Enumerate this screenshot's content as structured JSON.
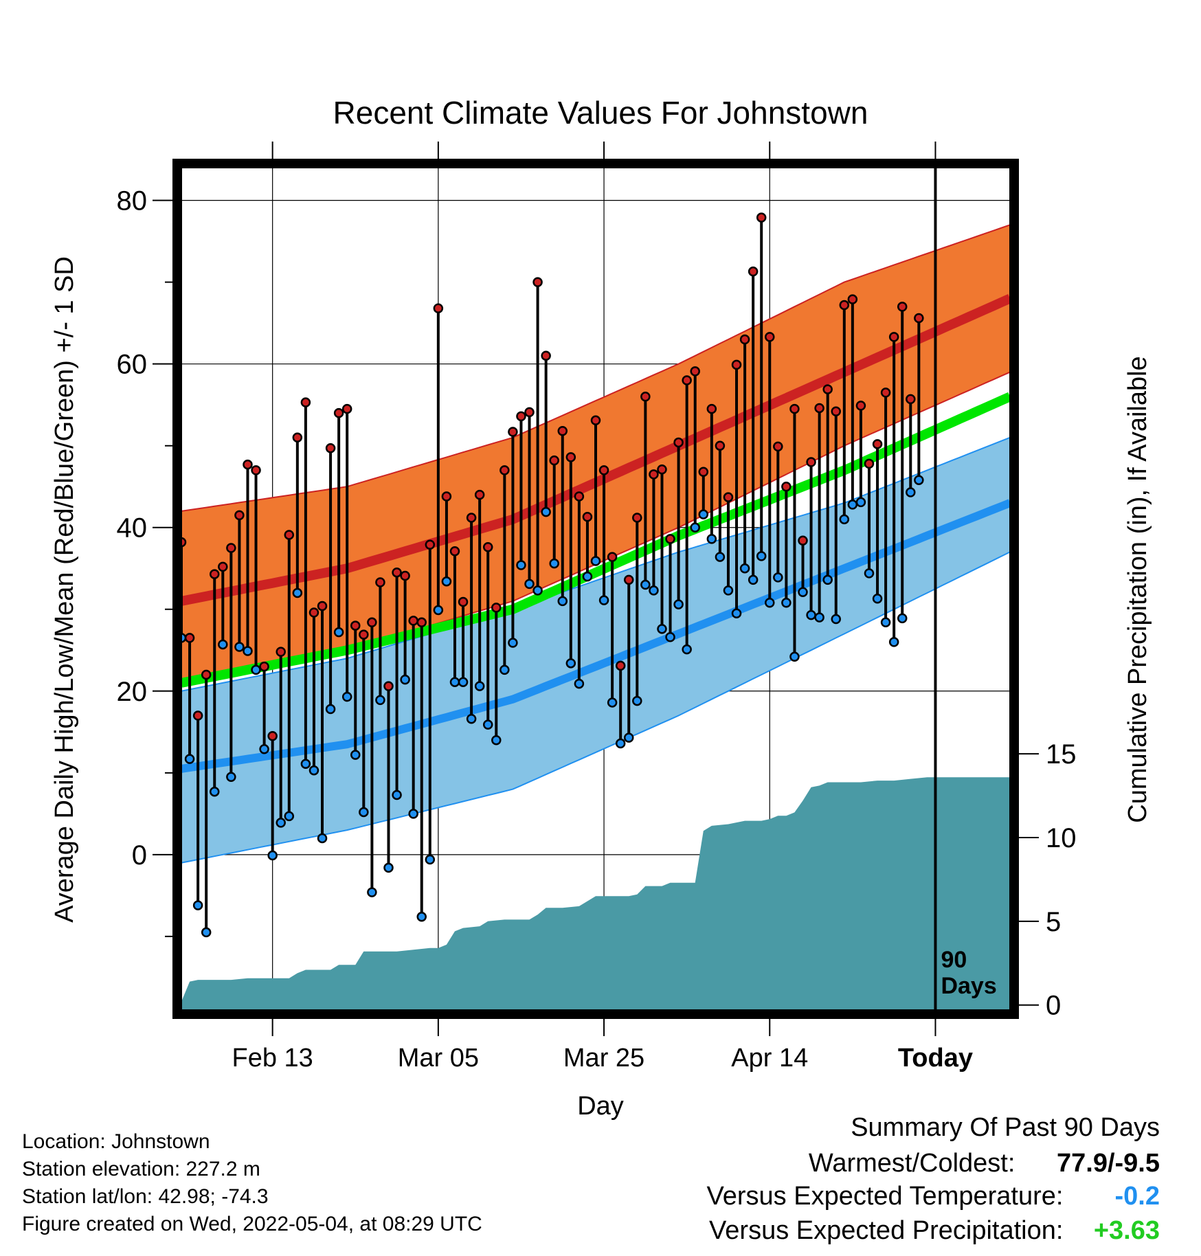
{
  "chart_data": {
    "type": "line",
    "title": "Recent Climate Values For Johnstown",
    "xlabel": "Day",
    "ylabel_left": "Average Daily High/Low/Mean (Red/Blue/Green) +/- 1 SD",
    "ylabel_right": "Cumulative Precipitation (in), If Available",
    "x_tick_labels": [
      "Feb 13",
      "Mar 05",
      "Mar 25",
      "Apr 14",
      "Today"
    ],
    "x_tick_days": [
      11,
      31,
      51,
      71,
      91
    ],
    "x_range_days": [
      0,
      100
    ],
    "ylim_left": [
      -19,
      84
    ],
    "yticks_left": [
      0,
      20,
      40,
      60,
      80
    ],
    "ylim_right": [
      -0.3,
      50
    ],
    "yticks_right": [
      0,
      5,
      10,
      15
    ],
    "today_marker_label": [
      "90",
      "Days"
    ],
    "colors": {
      "high_band": "#f07830",
      "high_line": "#cc2222",
      "low_band": "#85c3e6",
      "low_line": "#2090f0",
      "mean_line": "#00e600",
      "precip_fill": "#4a9aa5",
      "high_dot": "#cc2222",
      "low_dot": "#2090f0"
    },
    "normal_high": [
      [
        0,
        31
      ],
      [
        20,
        35
      ],
      [
        40,
        41
      ],
      [
        60,
        50
      ],
      [
        80,
        59
      ],
      [
        100,
        68
      ]
    ],
    "normal_high_upper": [
      [
        0,
        42
      ],
      [
        20,
        45
      ],
      [
        40,
        51
      ],
      [
        60,
        60
      ],
      [
        80,
        70
      ],
      [
        100,
        77
      ]
    ],
    "normal_high_lower": [
      [
        0,
        21
      ],
      [
        20,
        25
      ],
      [
        40,
        31
      ],
      [
        60,
        40
      ],
      [
        80,
        50
      ],
      [
        100,
        59
      ]
    ],
    "normal_low": [
      [
        0,
        10.5
      ],
      [
        20,
        13.5
      ],
      [
        40,
        19
      ],
      [
        60,
        27
      ],
      [
        80,
        35
      ],
      [
        100,
        43
      ]
    ],
    "normal_low_upper": [
      [
        0,
        20
      ],
      [
        20,
        24
      ],
      [
        40,
        30
      ],
      [
        60,
        37
      ],
      [
        80,
        43
      ],
      [
        100,
        51
      ]
    ],
    "normal_low_lower": [
      [
        0,
        -1
      ],
      [
        20,
        3
      ],
      [
        40,
        8
      ],
      [
        60,
        17
      ],
      [
        80,
        27
      ],
      [
        100,
        37
      ]
    ],
    "normal_mean": [
      [
        0,
        21
      ],
      [
        20,
        25
      ],
      [
        40,
        30
      ],
      [
        60,
        39
      ],
      [
        80,
        47
      ],
      [
        100,
        56
      ]
    ],
    "daily_high": [
      38.2,
      26.5,
      17,
      22,
      34.3,
      35.2,
      37.5,
      41.5,
      47.7,
      47,
      23,
      14.5,
      24.8,
      39.1,
      51,
      55.3,
      29.6,
      30.4,
      49.7,
      54,
      54.5,
      28,
      26.9,
      28.4,
      33.3,
      20.6,
      34.5,
      34.1,
      28.6,
      28.4,
      37.9,
      66.8,
      43.8,
      37.1,
      30.9,
      41.2,
      44,
      37.6,
      30.2,
      47,
      51.7,
      53.6,
      54.1,
      70,
      61,
      48.2,
      51.8,
      48.6,
      43.8,
      41.3,
      53.1,
      47,
      36.4,
      23.1,
      33.6,
      41.2,
      56,
      46.5,
      47.1,
      38.6,
      50.4,
      58,
      59.1,
      46.8,
      54.5,
      50,
      43.7,
      59.9,
      63,
      71.3,
      77.9,
      63.3,
      49.9,
      45,
      54.5,
      38.4,
      48,
      54.6,
      56.9,
      54.2,
      67.2,
      67.9,
      54.9,
      47.8,
      50.2,
      56.5,
      63.3,
      67,
      55.7,
      65.6
    ],
    "daily_low": [
      26.5,
      11.7,
      -6.2,
      -9.5,
      7.7,
      25.7,
      9.5,
      25.4,
      24.9,
      22.6,
      12.9,
      -0.1,
      3.9,
      4.7,
      32,
      11.1,
      10.3,
      2,
      17.8,
      27.2,
      19.3,
      12.2,
      5.2,
      -4.6,
      18.9,
      -1.6,
      7.3,
      21.4,
      5,
      -7.6,
      -0.6,
      29.9,
      33.4,
      21.1,
      21.1,
      16.6,
      20.6,
      15.9,
      14,
      22.6,
      25.9,
      35.4,
      33.1,
      32.3,
      41.9,
      35.6,
      31,
      23.4,
      20.9,
      34,
      35.9,
      31.1,
      18.6,
      13.6,
      14.3,
      18.8,
      33,
      32.3,
      27.6,
      26.6,
      30.6,
      25.1,
      40,
      41.6,
      38.6,
      36.4,
      32.3,
      29.5,
      35,
      33.6,
      36.5,
      30.8,
      33.9,
      30.8,
      24.2,
      32.1,
      29.3,
      29,
      33.6,
      28.8,
      41,
      42.8,
      43.1,
      34.4,
      31.3,
      28.4,
      26,
      28.9,
      44.3,
      45.8
    ],
    "cumulative_precip": [
      [
        0,
        0.2
      ],
      [
        1,
        1.4
      ],
      [
        2,
        1.5
      ],
      [
        4,
        1.5
      ],
      [
        6,
        1.5
      ],
      [
        8,
        1.6
      ],
      [
        10,
        1.6
      ],
      [
        12,
        1.6
      ],
      [
        13,
        1.6
      ],
      [
        14,
        1.9
      ],
      [
        15,
        2.1
      ],
      [
        17,
        2.1
      ],
      [
        18,
        2.1
      ],
      [
        19,
        2.4
      ],
      [
        21,
        2.4
      ],
      [
        22,
        3.2
      ],
      [
        24,
        3.2
      ],
      [
        26,
        3.2
      ],
      [
        28,
        3.3
      ],
      [
        30,
        3.4
      ],
      [
        31,
        3.4
      ],
      [
        32,
        3.6
      ],
      [
        33,
        4.4
      ],
      [
        34,
        4.6
      ],
      [
        36,
        4.7
      ],
      [
        37,
        5.0
      ],
      [
        39,
        5.1
      ],
      [
        40,
        5.1
      ],
      [
        42,
        5.1
      ],
      [
        43,
        5.4
      ],
      [
        44,
        5.8
      ],
      [
        46,
        5.8
      ],
      [
        48,
        5.9
      ],
      [
        49,
        6.2
      ],
      [
        50,
        6.5
      ],
      [
        52,
        6.5
      ],
      [
        54,
        6.5
      ],
      [
        55,
        6.6
      ],
      [
        56,
        7.1
      ],
      [
        58,
        7.1
      ],
      [
        59,
        7.3
      ],
      [
        62,
        7.3
      ],
      [
        63,
        10.4
      ],
      [
        64,
        10.7
      ],
      [
        66,
        10.8
      ],
      [
        68,
        11.0
      ],
      [
        70,
        11.0
      ],
      [
        71,
        11.1
      ],
      [
        72,
        11.3
      ],
      [
        73,
        11.3
      ],
      [
        74,
        11.5
      ],
      [
        75,
        12.2
      ],
      [
        76,
        13.0
      ],
      [
        77,
        13.1
      ],
      [
        78,
        13.3
      ],
      [
        80,
        13.3
      ],
      [
        82,
        13.3
      ],
      [
        84,
        13.4
      ],
      [
        86,
        13.4
      ],
      [
        88,
        13.5
      ],
      [
        90,
        13.6
      ],
      [
        92,
        13.6
      ],
      [
        94,
        13.6
      ],
      [
        96,
        13.6
      ],
      [
        100,
        13.6
      ]
    ]
  },
  "info": {
    "location": "Location: Johnstown",
    "elevation": "Station elevation: 227.2 m",
    "latlon": "Station lat/lon: 42.98; -74.3",
    "created": "Figure created on Wed, 2022-05-04, at 08:29 UTC"
  },
  "summary": {
    "title": "Summary Of Past 90 Days",
    "warmest_label": "Warmest/Coldest:",
    "warmest_value": "77.9/-9.5",
    "temp_label": "Versus Expected Temperature:",
    "temp_value": "-0.2",
    "temp_color": "#2090f0",
    "precip_label": "Versus Expected Precipitation:",
    "precip_value": "+3.63",
    "precip_color": "#22cc22"
  }
}
